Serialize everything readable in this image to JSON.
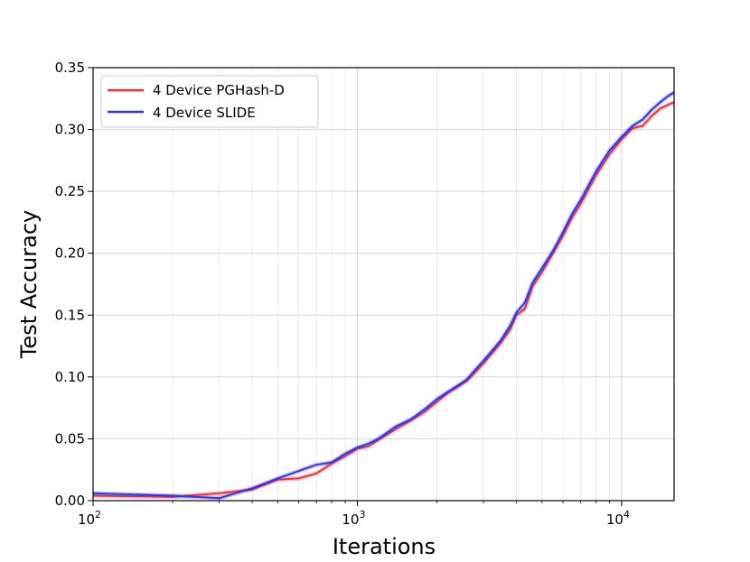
{
  "chart_data": {
    "type": "line",
    "xlabel": "Iterations",
    "ylabel": "Test Accuracy",
    "x_scale": "log",
    "xlim": [
      100,
      15800
    ],
    "ylim": [
      0,
      0.35
    ],
    "x_ticks": [
      {
        "value": 100,
        "base": "10",
        "exp": "2"
      },
      {
        "value": 1000,
        "base": "10",
        "exp": "3"
      },
      {
        "value": 10000,
        "base": "10",
        "exp": "4"
      }
    ],
    "y_ticks": [
      "0.00",
      "0.05",
      "0.10",
      "0.15",
      "0.20",
      "0.25",
      "0.30",
      "0.35"
    ],
    "y_tick_values": [
      0,
      0.05,
      0.1,
      0.15,
      0.2,
      0.25,
      0.3,
      0.35
    ],
    "grid": true,
    "legend_position": "top-left",
    "series": [
      {
        "name": "4 Device PGHash-D",
        "color": "#ee3333",
        "x": [
          100,
          200,
          300,
          400,
          500,
          600,
          700,
          800,
          900,
          1000,
          1100,
          1200,
          1400,
          1600,
          1800,
          2000,
          2200,
          2400,
          2600,
          2800,
          3000,
          3200,
          3500,
          3800,
          4000,
          4300,
          4600,
          5000,
          5500,
          6000,
          6500,
          7000,
          7500,
          8000,
          8500,
          9000,
          10000,
          11000,
          12000,
          13000,
          14000,
          15000,
          15800
        ],
        "y": [
          0.004,
          0.003,
          0.006,
          0.009,
          0.017,
          0.018,
          0.022,
          0.03,
          0.036,
          0.042,
          0.044,
          0.049,
          0.058,
          0.065,
          0.072,
          0.08,
          0.087,
          0.092,
          0.097,
          0.104,
          0.111,
          0.118,
          0.128,
          0.139,
          0.15,
          0.155,
          0.173,
          0.185,
          0.2,
          0.214,
          0.229,
          0.24,
          0.252,
          0.263,
          0.272,
          0.28,
          0.292,
          0.301,
          0.303,
          0.311,
          0.317,
          0.32,
          0.322
        ]
      },
      {
        "name": "4 Device SLIDE",
        "color": "#3333ee",
        "x": [
          100,
          200,
          300,
          400,
          500,
          600,
          700,
          800,
          900,
          1000,
          1100,
          1200,
          1400,
          1600,
          1800,
          2000,
          2200,
          2400,
          2600,
          2800,
          3000,
          3200,
          3500,
          3800,
          4000,
          4300,
          4600,
          5000,
          5500,
          6000,
          6500,
          7000,
          7500,
          8000,
          8500,
          9000,
          10000,
          11000,
          12000,
          13000,
          14000,
          15000,
          15800
        ],
        "y": [
          0.006,
          0.004,
          0.002,
          0.01,
          0.018,
          0.024,
          0.029,
          0.031,
          0.038,
          0.043,
          0.046,
          0.05,
          0.06,
          0.066,
          0.074,
          0.082,
          0.088,
          0.093,
          0.098,
          0.106,
          0.113,
          0.12,
          0.13,
          0.142,
          0.152,
          0.16,
          0.176,
          0.188,
          0.202,
          0.217,
          0.232,
          0.243,
          0.255,
          0.266,
          0.275,
          0.283,
          0.294,
          0.303,
          0.308,
          0.316,
          0.322,
          0.327,
          0.33
        ]
      }
    ]
  }
}
